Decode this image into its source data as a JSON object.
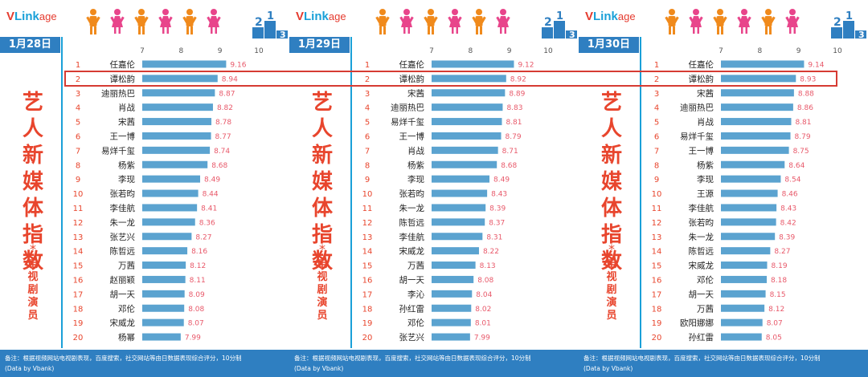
{
  "branding": {
    "logo_v": "V",
    "logo_link": "Link",
    "logo_age": "age",
    "vertical_title": [
      "艺",
      "人",
      "新",
      "媒",
      "体",
      "指",
      "数"
    ],
    "star": "*",
    "vertical_subtitle": [
      "电",
      "视",
      "剧",
      "演",
      "员"
    ],
    "footer_note": "备注：根据视频网站电视剧表现，百度搜索，社交网站等由日数据表现综合评分，10分制",
    "footer_source": "(Data by Vbank)",
    "colors": {
      "bar": "#5ba3d0",
      "value": "#e8596a",
      "accent": "#e8452d",
      "box": "#2f7fc1"
    }
  },
  "chart_data": [
    {
      "type": "bar",
      "date": "1月28日",
      "xlim": [
        7,
        10
      ],
      "ticks": [
        7,
        8,
        9,
        10
      ],
      "ranks": [
        1,
        2,
        3,
        4,
        5,
        6,
        7,
        8,
        9,
        10,
        11,
        12,
        13,
        14,
        15,
        16,
        17,
        18,
        19,
        20
      ],
      "categories": [
        "任嘉伦",
        "谭松韵",
        "迪丽热巴",
        "肖战",
        "宋茜",
        "王一博",
        "易烊千玺",
        "杨紫",
        "李现",
        "张若昀",
        "李佳航",
        "朱一龙",
        "张艺兴",
        "陈哲远",
        "万茜",
        "赵丽颖",
        "胡一天",
        "邓伦",
        "宋威龙",
        "杨幂"
      ],
      "values": [
        9.16,
        8.94,
        8.87,
        8.82,
        8.78,
        8.77,
        8.74,
        8.68,
        8.49,
        8.44,
        8.41,
        8.36,
        8.27,
        8.16,
        8.12,
        8.11,
        8.09,
        8.08,
        8.07,
        7.99
      ],
      "labels": [
        "9.16",
        "8.94",
        "8.87",
        "8.82",
        "8.78",
        "8.77",
        "8.74",
        "8.68",
        "8.49",
        "8.44",
        "8.41",
        "8.36",
        "8.27",
        "8.16",
        "8.12",
        "8.11",
        "8.09",
        "8.08",
        "8.07",
        "7.99"
      ]
    },
    {
      "type": "bar",
      "date": "1月29日",
      "xlim": [
        7,
        10
      ],
      "ticks": [
        7,
        8,
        9,
        10
      ],
      "ranks": [
        1,
        2,
        3,
        4,
        5,
        6,
        7,
        8,
        9,
        10,
        11,
        12,
        13,
        14,
        15,
        16,
        17,
        18,
        19,
        20
      ],
      "categories": [
        "任嘉伦",
        "谭松韵",
        "宋茜",
        "迪丽热巴",
        "易烊千玺",
        "王一博",
        "肖战",
        "杨紫",
        "李现",
        "张若昀",
        "朱一龙",
        "陈哲远",
        "李佳航",
        "宋威龙",
        "万茜",
        "胡一天",
        "李沁",
        "孙红雷",
        "邓伦",
        "张艺兴"
      ],
      "values": [
        9.12,
        8.92,
        8.89,
        8.83,
        8.81,
        8.79,
        8.71,
        8.68,
        8.49,
        8.43,
        8.39,
        8.37,
        8.31,
        8.22,
        8.13,
        8.08,
        8.04,
        8.02,
        8.01,
        7.99
      ],
      "labels": [
        "9.12",
        "8.92",
        "8.89",
        "8.83",
        "8.81",
        "8.79",
        "8.71",
        "8.68",
        "8.49",
        "8.43",
        "8.39",
        "8.37",
        "8.31",
        "8.22",
        "8.13",
        "8.08",
        "8.04",
        "8.02",
        "8.01",
        "7.99"
      ]
    },
    {
      "type": "bar",
      "date": "1月30日",
      "xlim": [
        7,
        10
      ],
      "ticks": [
        7,
        8,
        9,
        10
      ],
      "ranks": [
        1,
        2,
        3,
        4,
        5,
        6,
        7,
        8,
        9,
        10,
        11,
        12,
        13,
        14,
        15,
        16,
        17,
        18,
        19,
        20
      ],
      "categories": [
        "任嘉伦",
        "谭松韵",
        "宋茜",
        "迪丽热巴",
        "肖战",
        "易烊千玺",
        "王一博",
        "杨紫",
        "李现",
        "王源",
        "李佳航",
        "张若昀",
        "朱一龙",
        "陈哲远",
        "宋威龙",
        "邓伦",
        "胡一天",
        "万茜",
        "欧阳娜娜",
        "孙红雷"
      ],
      "values": [
        9.14,
        8.93,
        8.88,
        8.86,
        8.81,
        8.79,
        8.75,
        8.64,
        8.54,
        8.46,
        8.43,
        8.42,
        8.39,
        8.27,
        8.19,
        8.18,
        8.15,
        8.12,
        8.07,
        8.05
      ],
      "labels": [
        "9.14",
        "8.93",
        "8.88",
        "8.86",
        "8.81",
        "8.79",
        "8.75",
        "8.64",
        "8.54",
        "8.46",
        "8.43",
        "8.42",
        "8.39",
        "8.27",
        "8.19",
        "8.18",
        "8.15",
        "8.12",
        "8.07",
        "8.05"
      ]
    }
  ]
}
